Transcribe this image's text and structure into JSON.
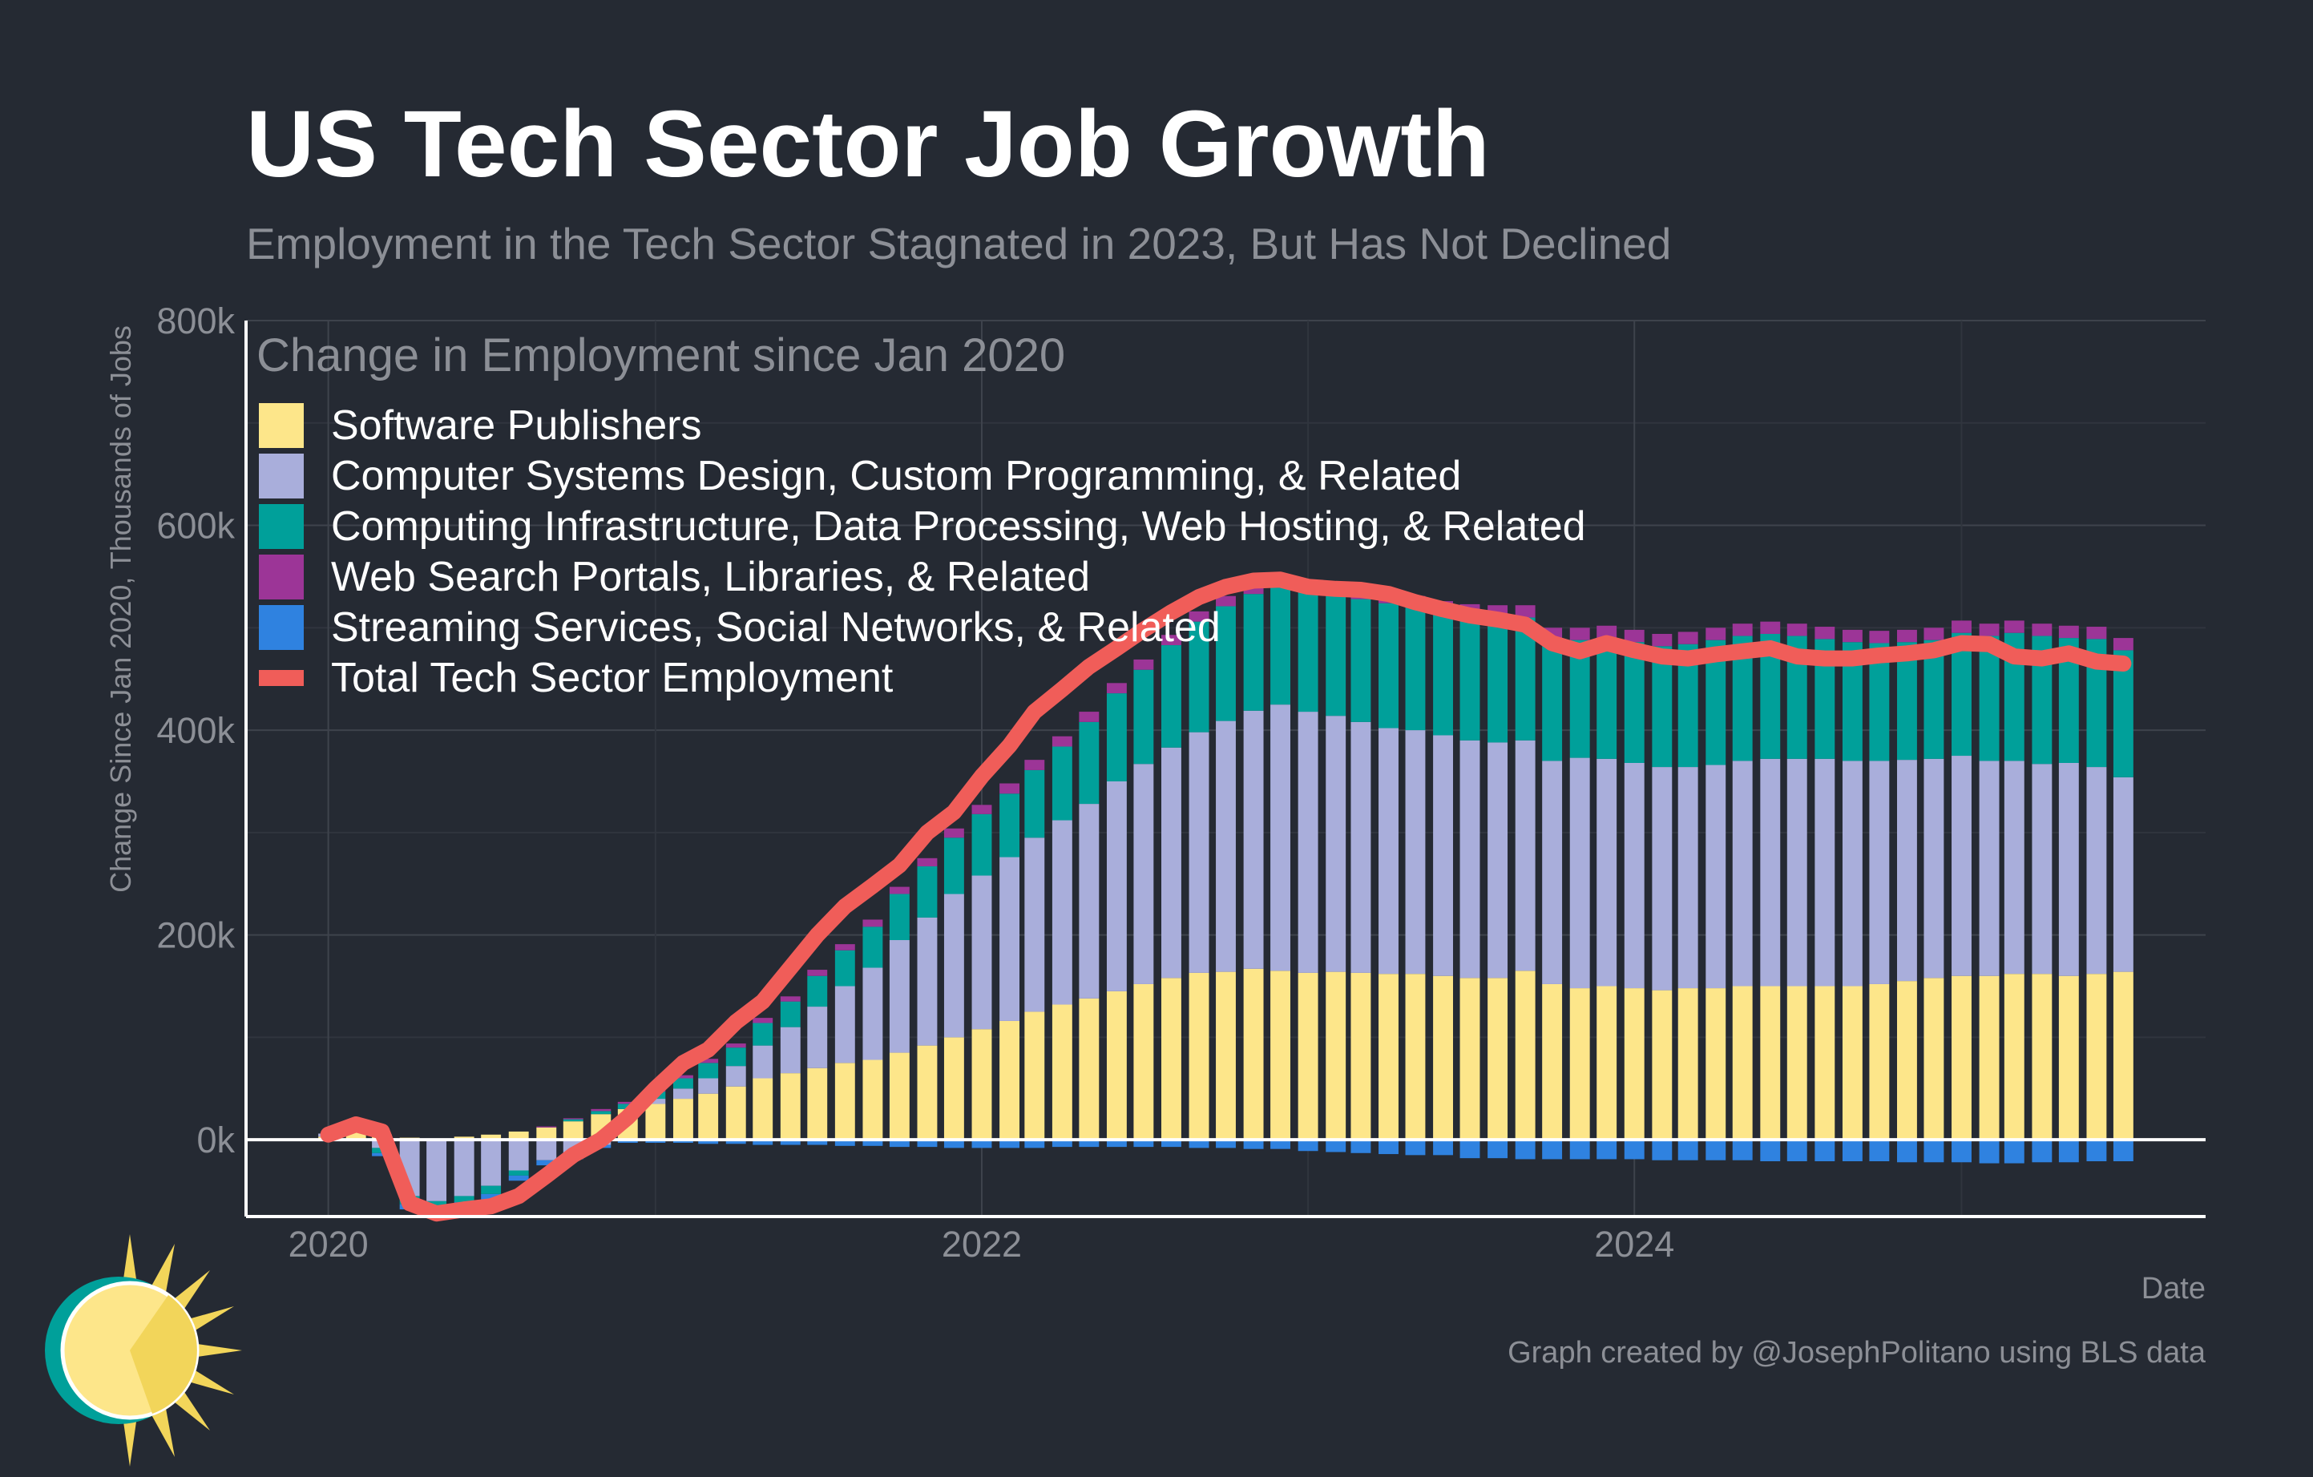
{
  "title": "US Tech Sector Job Growth",
  "subtitle": "Employment in the Tech Sector Stagnated in 2023, But Has Not Declined",
  "caption": "Graph created by @JosephPolitano using BLS data",
  "chart_data": {
    "type": "bar",
    "stacked": true,
    "xlabel": "Date",
    "ylabel": "Change Since Jan 2020, Thousands of Jobs",
    "ylim": [
      -75,
      800
    ],
    "yticks": [
      0,
      200,
      400,
      600,
      800
    ],
    "ytick_labels": [
      "0k",
      "200k",
      "400k",
      "600k",
      "800k"
    ],
    "xticks": [
      "2020",
      "2022",
      "2024"
    ],
    "grid": true,
    "legend_title": "Change in Employment since Jan 2020",
    "legend_position": "top-left",
    "x": [
      "2020-01",
      "2020-02",
      "2020-03",
      "2020-04",
      "2020-05",
      "2020-06",
      "2020-07",
      "2020-08",
      "2020-09",
      "2020-10",
      "2020-11",
      "2020-12",
      "2021-01",
      "2021-02",
      "2021-03",
      "2021-04",
      "2021-05",
      "2021-06",
      "2021-07",
      "2021-08",
      "2021-09",
      "2021-10",
      "2021-11",
      "2021-12",
      "2022-01",
      "2022-02",
      "2022-03",
      "2022-04",
      "2022-05",
      "2022-06",
      "2022-07",
      "2022-08",
      "2022-09",
      "2022-10",
      "2022-11",
      "2022-12",
      "2023-01",
      "2023-02",
      "2023-03",
      "2023-04",
      "2023-05",
      "2023-06",
      "2023-07",
      "2023-08",
      "2023-09",
      "2023-10",
      "2023-11",
      "2023-12",
      "2024-01",
      "2024-02",
      "2024-03",
      "2024-04",
      "2024-05",
      "2024-06",
      "2024-07",
      "2024-08",
      "2024-09",
      "2024-10",
      "2024-11",
      "2024-12",
      "2025-01",
      "2025-02",
      "2025-03",
      "2025-04",
      "2025-05",
      "2025-06",
      "2025-07"
    ],
    "series": [
      {
        "name": "Software Publishers",
        "color": "#fde68a",
        "values": [
          3,
          8,
          5,
          2,
          0,
          3,
          5,
          8,
          12,
          18,
          25,
          30,
          35,
          40,
          45,
          52,
          60,
          65,
          70,
          75,
          78,
          85,
          92,
          100,
          108,
          116,
          125,
          132,
          138,
          145,
          152,
          158,
          163,
          164,
          167,
          165,
          163,
          164,
          163,
          162,
          162,
          160,
          158,
          158,
          165,
          152,
          148,
          150,
          148,
          146,
          148,
          148,
          150,
          150,
          150,
          150,
          150,
          152,
          155,
          158,
          160,
          160,
          162,
          162,
          160,
          162,
          164
        ]
      },
      {
        "name": "Computer Systems Design, Custom Programming, & Related",
        "color": "#a9aedb",
        "values": [
          3,
          4,
          -8,
          -55,
          -60,
          -55,
          -45,
          -30,
          -20,
          -15,
          -5,
          0,
          5,
          10,
          15,
          20,
          32,
          45,
          60,
          75,
          90,
          110,
          125,
          140,
          150,
          160,
          170,
          180,
          190,
          205,
          215,
          225,
          235,
          245,
          252,
          260,
          255,
          250,
          245,
          240,
          238,
          235,
          232,
          230,
          225,
          218,
          225,
          222,
          220,
          218,
          216,
          218,
          220,
          222,
          222,
          222,
          220,
          218,
          216,
          214,
          215,
          210,
          208,
          205,
          208,
          202,
          190
        ]
      },
      {
        "name": "Computing Infrastructure, Data Processing, Web Hosting, & Related",
        "color": "#00a09a",
        "values": [
          0,
          0,
          -5,
          -8,
          -8,
          -6,
          -8,
          -5,
          0,
          2,
          3,
          5,
          7,
          10,
          15,
          18,
          22,
          25,
          30,
          35,
          40,
          45,
          50,
          55,
          60,
          62,
          66,
          72,
          80,
          86,
          92,
          100,
          108,
          112,
          114,
          116,
          118,
          120,
          120,
          122,
          120,
          120,
          122,
          122,
          120,
          118,
          115,
          118,
          118,
          118,
          120,
          122,
          122,
          122,
          120,
          117,
          116,
          115,
          115,
          116,
          120,
          122,
          125,
          125,
          122,
          125,
          124
        ]
      },
      {
        "name": "Web Search Portals, Libraries, & Related",
        "color": "#9c3597",
        "values": [
          0,
          0,
          0,
          0,
          0,
          0,
          0,
          0,
          1,
          1,
          2,
          2,
          3,
          3,
          4,
          4,
          5,
          5,
          6,
          6,
          7,
          7,
          8,
          9,
          9,
          10,
          10,
          10,
          10,
          10,
          10,
          10,
          10,
          10,
          11,
          11,
          11,
          11,
          11,
          11,
          11,
          11,
          11,
          12,
          12,
          12,
          12,
          12,
          12,
          12,
          12,
          12,
          12,
          12,
          12,
          12,
          12,
          12,
          12,
          12,
          12,
          12,
          12,
          12,
          12,
          12,
          12
        ]
      },
      {
        "name": "Streaming Services, Social Networks, & Related",
        "color": "#2f82e0",
        "values": [
          0,
          0,
          -3,
          -5,
          -6,
          -6,
          -6,
          -5,
          -5,
          -4,
          -3,
          -3,
          -3,
          -3,
          -4,
          -4,
          -5,
          -5,
          -5,
          -6,
          -6,
          -7,
          -7,
          -8,
          -8,
          -8,
          -8,
          -7,
          -7,
          -7,
          -7,
          -7,
          -8,
          -8,
          -9,
          -9,
          -11,
          -12,
          -13,
          -14,
          -15,
          -15,
          -18,
          -18,
          -19,
          -19,
          -19,
          -19,
          -19,
          -20,
          -20,
          -20,
          -20,
          -21,
          -21,
          -21,
          -21,
          -21,
          -22,
          -22,
          -22,
          -23,
          -23,
          -22,
          -22,
          -21,
          -21
        ]
      },
      {
        "name": "Total Tech Sector Employment",
        "type": "line",
        "color": "#f05d59",
        "values": [
          5,
          15,
          8,
          -62,
          -72,
          -68,
          -65,
          -55,
          -35,
          -15,
          0,
          22,
          50,
          75,
          88,
          115,
          135,
          168,
          200,
          228,
          248,
          268,
          300,
          320,
          355,
          385,
          418,
          440,
          462,
          480,
          498,
          515,
          530,
          540,
          546,
          547,
          540,
          538,
          537,
          533,
          525,
          518,
          512,
          508,
          503,
          485,
          477,
          485,
          478,
          472,
          470,
          474,
          477,
          480,
          472,
          470,
          470,
          473,
          475,
          478,
          485,
          484,
          472,
          470,
          475,
          467,
          465
        ]
      }
    ]
  }
}
